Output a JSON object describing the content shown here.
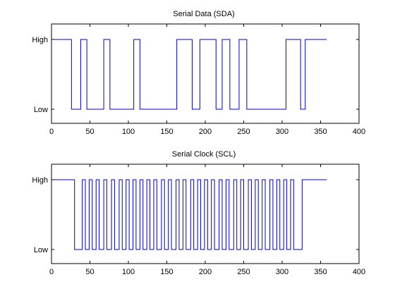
{
  "chart_data": [
    {
      "type": "line",
      "step": true,
      "title": "Serial Data (SDA)",
      "xlim": [
        0,
        400
      ],
      "ylim": [
        0,
        1
      ],
      "xticks": [
        0,
        50,
        100,
        150,
        200,
        250,
        300,
        350,
        400
      ],
      "yticks": [
        {
          "value": 0,
          "label": "Low"
        },
        {
          "value": 1,
          "label": "High"
        }
      ],
      "grid": false,
      "color": "#0000cc",
      "transitions": [
        {
          "x": 0,
          "y": 1
        },
        {
          "x": 26,
          "y": 0
        },
        {
          "x": 38,
          "y": 1
        },
        {
          "x": 46,
          "y": 0
        },
        {
          "x": 68,
          "y": 1
        },
        {
          "x": 76,
          "y": 0
        },
        {
          "x": 107,
          "y": 1
        },
        {
          "x": 115,
          "y": 0
        },
        {
          "x": 163,
          "y": 1
        },
        {
          "x": 183,
          "y": 0
        },
        {
          "x": 193,
          "y": 1
        },
        {
          "x": 214,
          "y": 0
        },
        {
          "x": 222,
          "y": 1
        },
        {
          "x": 232,
          "y": 0
        },
        {
          "x": 244,
          "y": 1
        },
        {
          "x": 254,
          "y": 0
        },
        {
          "x": 305,
          "y": 1
        },
        {
          "x": 324,
          "y": 0
        },
        {
          "x": 330,
          "y": 1
        },
        {
          "x": 358,
          "y": 1
        }
      ]
    },
    {
      "type": "line",
      "step": true,
      "title": "Serial Clock (SCL)",
      "xlim": [
        0,
        400
      ],
      "ylim": [
        0,
        1
      ],
      "xticks": [
        0,
        50,
        100,
        150,
        200,
        250,
        300,
        350,
        400
      ],
      "yticks": [
        {
          "value": 0,
          "label": "Low"
        },
        {
          "value": 1,
          "label": "High"
        }
      ],
      "grid": false,
      "color": "#0000cc",
      "idle_start": 0,
      "first_fall": 30,
      "pulses": [
        [
          40,
          44
        ],
        [
          49,
          53
        ],
        [
          58,
          62
        ],
        [
          68,
          72
        ],
        [
          78,
          82
        ],
        [
          88,
          92
        ],
        [
          97,
          101
        ],
        [
          106,
          110
        ],
        [
          115,
          119
        ],
        [
          124,
          128
        ],
        [
          133,
          137
        ],
        [
          143,
          147
        ],
        [
          152,
          156
        ],
        [
          162,
          166
        ],
        [
          171,
          175
        ],
        [
          181,
          185
        ],
        [
          190,
          194
        ],
        [
          199,
          203
        ],
        [
          208,
          212
        ],
        [
          218,
          222
        ],
        [
          227,
          231
        ],
        [
          237,
          241
        ],
        [
          246,
          250
        ],
        [
          256,
          260
        ],
        [
          265,
          269
        ],
        [
          274,
          278
        ],
        [
          284,
          288
        ],
        [
          293,
          297
        ],
        [
          302,
          306
        ],
        [
          311,
          315
        ]
      ],
      "last_rise": 326,
      "end": 358
    }
  ]
}
